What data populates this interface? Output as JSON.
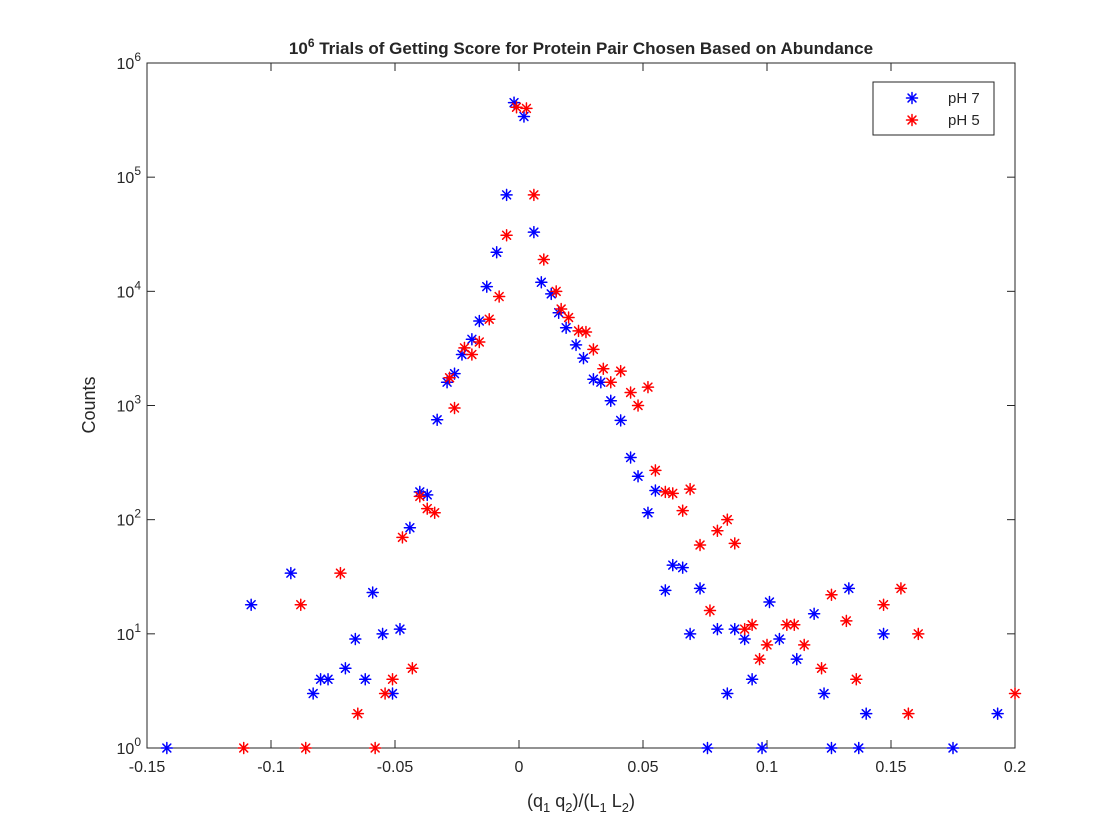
{
  "chart_data": {
    "type": "scatter",
    "title": {
      "prefix": "10",
      "superscript": "6",
      "rest": " Trials of Getting Score for Protein Pair Chosen Based on Abundance"
    },
    "xlabel": {
      "parts": [
        {
          "t": "(q"
        },
        {
          "t": "1",
          "sub": true
        },
        {
          "t": " q"
        },
        {
          "t": "2",
          "sub": true
        },
        {
          "t": ")/(L"
        },
        {
          "t": "1",
          "sub": true
        },
        {
          "t": " L"
        },
        {
          "t": "2",
          "sub": true
        },
        {
          "t": ")"
        }
      ]
    },
    "ylabel": "Counts",
    "xlim": [
      -0.15,
      0.2
    ],
    "ylim": [
      1,
      1000000
    ],
    "yscale": "log",
    "grid": false,
    "legend_position": "top-right",
    "marker": "asterisk",
    "x_ticks": [
      {
        "value": -0.15,
        "label": "-0.15"
      },
      {
        "value": -0.1,
        "label": "-0.1"
      },
      {
        "value": -0.05,
        "label": "-0.05"
      },
      {
        "value": 0,
        "label": "0"
      },
      {
        "value": 0.05,
        "label": "0.05"
      },
      {
        "value": 0.1,
        "label": "0.1"
      },
      {
        "value": 0.15,
        "label": "0.15"
      },
      {
        "value": 0.2,
        "label": "0.2"
      }
    ],
    "y_ticks": [
      {
        "value": 1,
        "base": "10",
        "exp": "0"
      },
      {
        "value": 10,
        "base": "10",
        "exp": "1"
      },
      {
        "value": 100,
        "base": "10",
        "exp": "2"
      },
      {
        "value": 1000,
        "base": "10",
        "exp": "3"
      },
      {
        "value": 10000,
        "base": "10",
        "exp": "4"
      },
      {
        "value": 100000,
        "base": "10",
        "exp": "5"
      },
      {
        "value": 1000000,
        "base": "10",
        "exp": "6"
      }
    ],
    "series": [
      {
        "name": "pH 7",
        "color": "#0000ff",
        "points": [
          [
            -0.142,
            1
          ],
          [
            -0.108,
            18
          ],
          [
            -0.092,
            34
          ],
          [
            -0.083,
            3
          ],
          [
            -0.08,
            4
          ],
          [
            -0.077,
            4
          ],
          [
            -0.07,
            5
          ],
          [
            -0.066,
            9
          ],
          [
            -0.062,
            4
          ],
          [
            -0.059,
            23
          ],
          [
            -0.055,
            10
          ],
          [
            -0.051,
            3
          ],
          [
            -0.048,
            11
          ],
          [
            -0.044,
            85
          ],
          [
            -0.04,
            175
          ],
          [
            -0.037,
            165
          ],
          [
            -0.033,
            750
          ],
          [
            -0.029,
            1600
          ],
          [
            -0.026,
            1900
          ],
          [
            -0.023,
            2800
          ],
          [
            -0.019,
            3800
          ],
          [
            -0.016,
            5500
          ],
          [
            -0.013,
            11000
          ],
          [
            -0.009,
            22000
          ],
          [
            -0.005,
            70000
          ],
          [
            -0.002,
            450000
          ],
          [
            0.002,
            340000
          ],
          [
            0.006,
            33000
          ],
          [
            0.009,
            12000
          ],
          [
            0.013,
            9500
          ],
          [
            0.016,
            6500
          ],
          [
            0.019,
            4800
          ],
          [
            0.023,
            3400
          ],
          [
            0.026,
            2600
          ],
          [
            0.03,
            1700
          ],
          [
            0.033,
            1600
          ],
          [
            0.037,
            1100
          ],
          [
            0.041,
            740
          ],
          [
            0.045,
            350
          ],
          [
            0.048,
            240
          ],
          [
            0.052,
            115
          ],
          [
            0.055,
            180
          ],
          [
            0.059,
            24
          ],
          [
            0.062,
            40
          ],
          [
            0.066,
            38
          ],
          [
            0.069,
            10
          ],
          [
            0.073,
            25
          ],
          [
            0.076,
            1
          ],
          [
            0.08,
            11
          ],
          [
            0.084,
            3
          ],
          [
            0.087,
            11
          ],
          [
            0.091,
            9
          ],
          [
            0.094,
            4
          ],
          [
            0.098,
            1
          ],
          [
            0.101,
            19
          ],
          [
            0.105,
            9
          ],
          [
            0.112,
            6
          ],
          [
            0.119,
            15
          ],
          [
            0.123,
            3
          ],
          [
            0.126,
            1
          ],
          [
            0.133,
            25
          ],
          [
            0.137,
            1
          ],
          [
            0.14,
            2
          ],
          [
            0.147,
            10
          ],
          [
            0.175,
            1
          ],
          [
            0.193,
            2
          ]
        ]
      },
      {
        "name": "pH 5",
        "color": "#ff0000",
        "points": [
          [
            -0.111,
            1
          ],
          [
            -0.088,
            18
          ],
          [
            -0.086,
            1
          ],
          [
            -0.072,
            34
          ],
          [
            -0.065,
            2
          ],
          [
            -0.058,
            1
          ],
          [
            -0.054,
            3
          ],
          [
            -0.051,
            4
          ],
          [
            -0.047,
            70
          ],
          [
            -0.043,
            5
          ],
          [
            -0.04,
            160
          ],
          [
            -0.037,
            125
          ],
          [
            -0.034,
            115
          ],
          [
            -0.028,
            1750
          ],
          [
            -0.026,
            950
          ],
          [
            -0.022,
            3200
          ],
          [
            -0.019,
            2800
          ],
          [
            -0.016,
            3600
          ],
          [
            -0.012,
            5700
          ],
          [
            -0.008,
            9000
          ],
          [
            -0.005,
            31000
          ],
          [
            -0.001,
            410000
          ],
          [
            0.003,
            400000
          ],
          [
            0.006,
            70000
          ],
          [
            0.01,
            19000
          ],
          [
            0.015,
            10000
          ],
          [
            0.017,
            7000
          ],
          [
            0.02,
            5900
          ],
          [
            0.024,
            4500
          ],
          [
            0.027,
            4400
          ],
          [
            0.03,
            3100
          ],
          [
            0.034,
            2100
          ],
          [
            0.037,
            1600
          ],
          [
            0.041,
            2000
          ],
          [
            0.045,
            1300
          ],
          [
            0.048,
            1000
          ],
          [
            0.052,
            1450
          ],
          [
            0.055,
            270
          ],
          [
            0.059,
            175
          ],
          [
            0.062,
            170
          ],
          [
            0.066,
            120
          ],
          [
            0.069,
            185
          ],
          [
            0.073,
            60
          ],
          [
            0.077,
            16
          ],
          [
            0.08,
            80
          ],
          [
            0.084,
            100
          ],
          [
            0.087,
            62
          ],
          [
            0.091,
            11
          ],
          [
            0.094,
            12
          ],
          [
            0.097,
            6
          ],
          [
            0.1,
            8
          ],
          [
            0.108,
            12
          ],
          [
            0.111,
            12
          ],
          [
            0.115,
            8
          ],
          [
            0.122,
            5
          ],
          [
            0.126,
            22
          ],
          [
            0.132,
            13
          ],
          [
            0.136,
            4
          ],
          [
            0.147,
            18
          ],
          [
            0.154,
            25
          ],
          [
            0.157,
            2
          ],
          [
            0.161,
            10
          ],
          [
            0.2,
            3
          ]
        ]
      }
    ]
  }
}
